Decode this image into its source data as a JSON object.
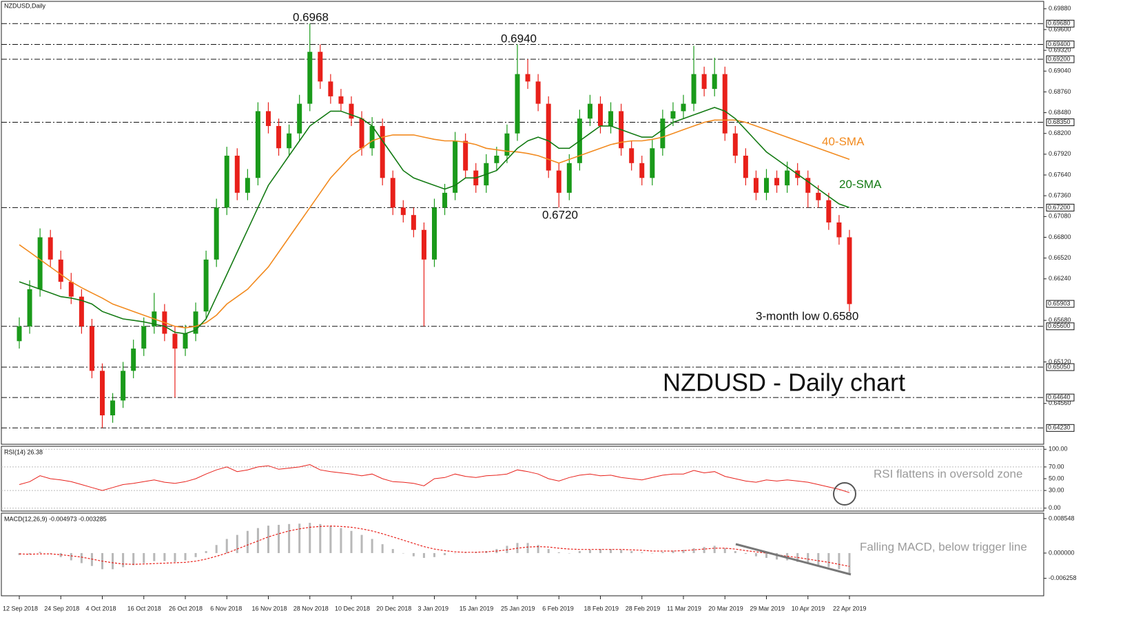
{
  "chart_data": [
    {
      "type": "candlestick",
      "title": "NZDUSD,Daily",
      "subtitle": "NZDUSD - Daily chart",
      "annotations": [
        "0.6968",
        "0.6940",
        "0.6720",
        "3-month low 0.6580"
      ],
      "categories": [
        "12 Sep 2018",
        null,
        null,
        null,
        "24 Sep 2018",
        null,
        null,
        null,
        "4 Oct 2018",
        null,
        null,
        null,
        "16 Oct 2018",
        null,
        null,
        null,
        "26 Oct 2018",
        null,
        null,
        null,
        "6 Nov 2018",
        null,
        null,
        null,
        "16 Nov 2018",
        null,
        null,
        null,
        "28 Nov 2018",
        null,
        null,
        null,
        "10 Dec 2018",
        null,
        null,
        null,
        "20 Dec 2018",
        null,
        null,
        null,
        "3 Jan 2019",
        null,
        null,
        null,
        "15 Jan 2019",
        null,
        null,
        null,
        "25 Jan 2019",
        null,
        null,
        null,
        "6 Feb 2019",
        null,
        null,
        null,
        "18 Feb 2019",
        null,
        null,
        null,
        "28 Feb 2019",
        null,
        null,
        null,
        "11 Mar 2019",
        null,
        null,
        null,
        "20 Mar 2019",
        null,
        null,
        null,
        "29 Mar 2019",
        null,
        null,
        null,
        "10 Apr 2019",
        null,
        null,
        null,
        "22 Apr 2019"
      ],
      "ohlc": [
        [
          0.654,
          0.6572,
          0.653,
          0.656
        ],
        [
          0.656,
          0.6622,
          0.655,
          0.661
        ],
        [
          0.661,
          0.6692,
          0.66,
          0.668
        ],
        [
          0.668,
          0.669,
          0.664,
          0.665
        ],
        [
          0.665,
          0.6662,
          0.661,
          0.662
        ],
        [
          0.662,
          0.6632,
          0.659,
          0.66
        ],
        [
          0.66,
          0.661,
          0.655,
          0.656
        ],
        [
          0.656,
          0.657,
          0.649,
          0.65
        ],
        [
          0.65,
          0.651,
          0.6423,
          0.644
        ],
        [
          0.644,
          0.647,
          0.643,
          0.646
        ],
        [
          0.646,
          0.6512,
          0.645,
          0.65
        ],
        [
          0.65,
          0.6542,
          0.649,
          0.653
        ],
        [
          0.653,
          0.6572,
          0.652,
          0.656
        ],
        [
          0.656,
          0.6605,
          0.655,
          0.658
        ],
        [
          0.658,
          0.659,
          0.654,
          0.655
        ],
        [
          0.655,
          0.656,
          0.6464,
          0.653
        ],
        [
          0.653,
          0.6562,
          0.652,
          0.655
        ],
        [
          0.655,
          0.6592,
          0.654,
          0.658
        ],
        [
          0.658,
          0.6662,
          0.657,
          0.665
        ],
        [
          0.665,
          0.6732,
          0.664,
          0.672
        ],
        [
          0.672,
          0.6802,
          0.671,
          0.679
        ],
        [
          0.679,
          0.68,
          0.673,
          0.674
        ],
        [
          0.674,
          0.6772,
          0.673,
          0.676
        ],
        [
          0.676,
          0.6862,
          0.675,
          0.685
        ],
        [
          0.685,
          0.6862,
          0.682,
          0.683
        ],
        [
          0.683,
          0.684,
          0.679,
          0.68
        ],
        [
          0.68,
          0.6832,
          0.679,
          0.682
        ],
        [
          0.682,
          0.6872,
          0.681,
          0.686
        ],
        [
          0.686,
          0.6968,
          0.685,
          0.693
        ],
        [
          0.693,
          0.694,
          0.688,
          0.689
        ],
        [
          0.689,
          0.69,
          0.686,
          0.687
        ],
        [
          0.687,
          0.688,
          0.685,
          0.686
        ],
        [
          0.686,
          0.687,
          0.683,
          0.684
        ],
        [
          0.684,
          0.685,
          0.679,
          0.68
        ],
        [
          0.68,
          0.6842,
          0.679,
          0.683
        ],
        [
          0.683,
          0.684,
          0.675,
          0.676
        ],
        [
          0.676,
          0.677,
          0.671,
          0.672
        ],
        [
          0.672,
          0.673,
          0.67,
          0.671
        ],
        [
          0.671,
          0.672,
          0.668,
          0.669
        ],
        [
          0.669,
          0.67,
          0.656,
          0.665
        ],
        [
          0.665,
          0.6732,
          0.664,
          0.672
        ],
        [
          0.672,
          0.6752,
          0.671,
          0.674
        ],
        [
          0.674,
          0.6822,
          0.673,
          0.681
        ],
        [
          0.681,
          0.682,
          0.676,
          0.677
        ],
        [
          0.677,
          0.678,
          0.674,
          0.675
        ],
        [
          0.675,
          0.6792,
          0.674,
          0.678
        ],
        [
          0.678,
          0.6802,
          0.677,
          0.679
        ],
        [
          0.679,
          0.6832,
          0.678,
          0.682
        ],
        [
          0.682,
          0.694,
          0.681,
          0.69
        ],
        [
          0.69,
          0.692,
          0.688,
          0.689
        ],
        [
          0.689,
          0.69,
          0.685,
          0.686
        ],
        [
          0.686,
          0.687,
          0.676,
          0.677
        ],
        [
          0.677,
          0.678,
          0.672,
          0.674
        ],
        [
          0.674,
          0.6792,
          0.673,
          0.678
        ],
        [
          0.678,
          0.6852,
          0.677,
          0.684
        ],
        [
          0.684,
          0.6872,
          0.683,
          0.686
        ],
        [
          0.686,
          0.687,
          0.682,
          0.683
        ],
        [
          0.683,
          0.6862,
          0.682,
          0.685
        ],
        [
          0.685,
          0.686,
          0.679,
          0.68
        ],
        [
          0.68,
          0.681,
          0.677,
          0.678
        ],
        [
          0.678,
          0.679,
          0.675,
          0.676
        ],
        [
          0.676,
          0.6812,
          0.675,
          0.68
        ],
        [
          0.68,
          0.6852,
          0.679,
          0.684
        ],
        [
          0.684,
          0.6862,
          0.683,
          0.685
        ],
        [
          0.685,
          0.6872,
          0.684,
          0.686
        ],
        [
          0.686,
          0.6938,
          0.685,
          0.69
        ],
        [
          0.69,
          0.691,
          0.687,
          0.688
        ],
        [
          0.688,
          0.6922,
          0.687,
          0.69
        ],
        [
          0.69,
          0.691,
          0.681,
          0.682
        ],
        [
          0.682,
          0.683,
          0.678,
          0.679
        ],
        [
          0.679,
          0.68,
          0.675,
          0.676
        ],
        [
          0.676,
          0.677,
          0.673,
          0.674
        ],
        [
          0.674,
          0.6772,
          0.673,
          0.676
        ],
        [
          0.676,
          0.677,
          0.674,
          0.675
        ],
        [
          0.675,
          0.6782,
          0.674,
          0.677
        ],
        [
          0.677,
          0.678,
          0.675,
          0.676
        ],
        [
          0.676,
          0.677,
          0.672,
          0.674
        ],
        [
          0.674,
          0.675,
          0.672,
          0.673
        ],
        [
          0.673,
          0.674,
          0.669,
          0.67
        ],
        [
          0.67,
          0.671,
          0.667,
          0.668
        ],
        [
          0.668,
          0.669,
          0.658,
          0.659
        ]
      ],
      "up_color": "#1a9a1a",
      "down_color": "#e8201a",
      "series": [
        {
          "name": "40-SMA",
          "color": "#f28a1e",
          "values": [
            0.667,
            0.666,
            0.665,
            0.664,
            0.663,
            0.662,
            0.6612,
            0.6605,
            0.6598,
            0.659,
            0.6585,
            0.658,
            0.6575,
            0.657,
            0.6565,
            0.656,
            0.6558,
            0.656,
            0.6565,
            0.6575,
            0.659,
            0.66,
            0.661,
            0.6625,
            0.664,
            0.666,
            0.668,
            0.67,
            0.672,
            0.674,
            0.676,
            0.6775,
            0.679,
            0.68,
            0.681,
            0.6815,
            0.6818,
            0.6818,
            0.6818,
            0.6815,
            0.6812,
            0.681,
            0.681,
            0.6808,
            0.6805,
            0.68,
            0.6798,
            0.6796,
            0.6795,
            0.6793,
            0.679,
            0.6785,
            0.678,
            0.6785,
            0.679,
            0.6795,
            0.68,
            0.6805,
            0.6808,
            0.681,
            0.681,
            0.6812,
            0.6815,
            0.682,
            0.6825,
            0.683,
            0.6835,
            0.6838,
            0.6838,
            0.6838,
            0.6835,
            0.683,
            0.6825,
            0.682,
            0.6815,
            0.681,
            0.6805,
            0.68,
            0.6795,
            0.679,
            0.6785
          ]
        },
        {
          "name": "20-SMA",
          "color": "#137a13",
          "values": [
            0.662,
            0.6615,
            0.661,
            0.6605,
            0.66,
            0.6598,
            0.6595,
            0.659,
            0.658,
            0.6575,
            0.657,
            0.6568,
            0.6566,
            0.6563,
            0.656,
            0.6552,
            0.655,
            0.6555,
            0.657,
            0.66,
            0.663,
            0.666,
            0.669,
            0.672,
            0.675,
            0.677,
            0.679,
            0.681,
            0.683,
            0.684,
            0.685,
            0.685,
            0.6845,
            0.684,
            0.683,
            0.681,
            0.679,
            0.677,
            0.676,
            0.6755,
            0.675,
            0.6745,
            0.675,
            0.676,
            0.676,
            0.6765,
            0.677,
            0.6785,
            0.68,
            0.681,
            0.6815,
            0.681,
            0.68,
            0.68,
            0.681,
            0.682,
            0.683,
            0.683,
            0.6825,
            0.682,
            0.6815,
            0.6815,
            0.6825,
            0.6835,
            0.684,
            0.6845,
            0.685,
            0.6855,
            0.685,
            0.684,
            0.6825,
            0.681,
            0.6795,
            0.6785,
            0.6775,
            0.6765,
            0.6755,
            0.6745,
            0.6735,
            0.6725,
            0.672
          ]
        }
      ],
      "ylim": [
        0.6401,
        0.6998
      ],
      "yticks": [
        {
          "value": 0.6988,
          "label": "0.69880"
        },
        {
          "value": 0.696,
          "label": "0.69600"
        },
        {
          "value": 0.6932,
          "label": "0.69320"
        },
        {
          "value": 0.6904,
          "label": "0.69040"
        },
        {
          "value": 0.6876,
          "label": "0.68760"
        },
        {
          "value": 0.6848,
          "label": "0.68480"
        },
        {
          "value": 0.682,
          "label": "0.68200"
        },
        {
          "value": 0.6792,
          "label": "0.67920"
        },
        {
          "value": 0.6764,
          "label": "0.67640"
        },
        {
          "value": 0.6736,
          "label": "0.67360"
        },
        {
          "value": 0.6708,
          "label": "0.67080"
        },
        {
          "value": 0.668,
          "label": "0.66800"
        },
        {
          "value": 0.6652,
          "label": "0.66520"
        },
        {
          "value": 0.6624,
          "label": "0.66240"
        },
        {
          "value": 0.6568,
          "label": "0.65680"
        },
        {
          "value": 0.6512,
          "label": "0.65120"
        },
        {
          "value": 0.6456,
          "label": "0.64560"
        }
      ],
      "levels": [
        {
          "value": 0.6968,
          "label": "0.69680"
        },
        {
          "value": 0.694,
          "label": "0.69400"
        },
        {
          "value": 0.692,
          "label": "0.69200"
        },
        {
          "value": 0.6835,
          "label": "0.68350"
        },
        {
          "value": 0.672,
          "label": "0.67200"
        },
        {
          "value": 0.656,
          "label": "0.65600"
        },
        {
          "value": 0.6505,
          "label": "0.65050"
        },
        {
          "value": 0.6464,
          "label": "0.64640"
        },
        {
          "value": 0.6423,
          "label": "0.64230"
        }
      ],
      "last_price": {
        "value": 0.65903,
        "label": "0.65903"
      },
      "grid": false
    },
    {
      "type": "line",
      "title": "RSI(14) 26.38",
      "annotations": [
        "RSI flattens in oversold zone"
      ],
      "color": "#e8201a",
      "values": [
        40,
        45,
        55,
        50,
        48,
        45,
        40,
        35,
        30,
        35,
        40,
        42,
        45,
        48,
        44,
        42,
        45,
        50,
        58,
        65,
        70,
        62,
        65,
        70,
        72,
        66,
        68,
        70,
        74,
        65,
        62,
        60,
        58,
        55,
        58,
        50,
        45,
        44,
        42,
        38,
        50,
        52,
        58,
        54,
        52,
        55,
        56,
        58,
        65,
        62,
        58,
        50,
        46,
        52,
        56,
        58,
        55,
        56,
        52,
        50,
        48,
        52,
        56,
        58,
        58,
        64,
        60,
        62,
        54,
        50,
        46,
        44,
        48,
        46,
        48,
        46,
        44,
        40,
        36,
        32,
        26.38
      ],
      "ylim": [
        -5,
        105
      ],
      "yticks": [
        {
          "value": 100,
          "label": "100.00"
        },
        {
          "value": 70,
          "label": "70.00"
        },
        {
          "value": 50,
          "label": "50.00"
        },
        {
          "value": 30,
          "label": "30.00"
        },
        {
          "value": 0,
          "label": "0.00"
        }
      ],
      "grid": true
    },
    {
      "type": "macd",
      "title": "MACD(12,26,9) -0.004973 -0.003285",
      "annotations": [
        "Falling MACD, below trigger line"
      ],
      "histogram_color": "#b8b8b8",
      "signal_color": "#e8201a",
      "histogram": [
        -0.0005,
        -0.0003,
        0.0003,
        0.0,
        -0.001,
        -0.0018,
        -0.0025,
        -0.0032,
        -0.004,
        -0.004,
        -0.0035,
        -0.003,
        -0.0025,
        -0.002,
        -0.002,
        -0.0022,
        -0.0018,
        -0.001,
        0.0005,
        0.002,
        0.0035,
        0.0045,
        0.0055,
        0.0062,
        0.0068,
        0.007,
        0.0072,
        0.0073,
        0.0075,
        0.0072,
        0.0068,
        0.0062,
        0.0055,
        0.0045,
        0.0035,
        0.0022,
        0.001,
        0.0,
        -0.0008,
        -0.0012,
        -0.001,
        -0.0005,
        0.0,
        0.0002,
        0.0003,
        0.0005,
        0.001,
        0.0018,
        0.0025,
        0.0025,
        0.002,
        0.001,
        0.0002,
        0.0,
        0.0005,
        0.0008,
        0.001,
        0.001,
        0.0008,
        0.0005,
        0.0002,
        0.0,
        0.0003,
        0.0006,
        0.0008,
        0.0012,
        0.0015,
        0.0018,
        0.0012,
        0.0005,
        -0.0002,
        -0.0008,
        -0.0012,
        -0.0016,
        -0.0018,
        -0.0022,
        -0.0026,
        -0.003,
        -0.0035,
        -0.004,
        -0.005
      ],
      "signal": [
        -0.0002,
        -0.0003,
        -0.0002,
        -0.0002,
        -0.0004,
        -0.0007,
        -0.001,
        -0.0015,
        -0.002,
        -0.0024,
        -0.0027,
        -0.0028,
        -0.0027,
        -0.0026,
        -0.0025,
        -0.0024,
        -0.0023,
        -0.002,
        -0.0015,
        -0.0008,
        0.0,
        0.001,
        0.002,
        0.003,
        0.004,
        0.0048,
        0.0055,
        0.006,
        0.0064,
        0.0066,
        0.0067,
        0.0066,
        0.0064,
        0.006,
        0.0055,
        0.0048,
        0.004,
        0.0032,
        0.0024,
        0.0016,
        0.001,
        0.0006,
        0.0003,
        0.0002,
        0.0002,
        0.0003,
        0.0005,
        0.0008,
        0.0012,
        0.0015,
        0.0016,
        0.0015,
        0.0012,
        0.001,
        0.0009,
        0.0009,
        0.0009,
        0.0009,
        0.0009,
        0.0008,
        0.0007,
        0.0005,
        0.0005,
        0.0005,
        0.0006,
        0.0008,
        0.001,
        0.0012,
        0.0012,
        0.001,
        0.0006,
        0.0003,
        0.0,
        -0.0004,
        -0.0008,
        -0.0011,
        -0.0015,
        -0.0019,
        -0.0023,
        -0.0028,
        -0.0033
      ],
      "ylim": [
        -0.0106,
        0.0099
      ],
      "yticks": [
        0.008548,
        {
          "value": 0,
          "label": "0.000000"
        },
        -0.006258
      ],
      "grid": false
    }
  ]
}
